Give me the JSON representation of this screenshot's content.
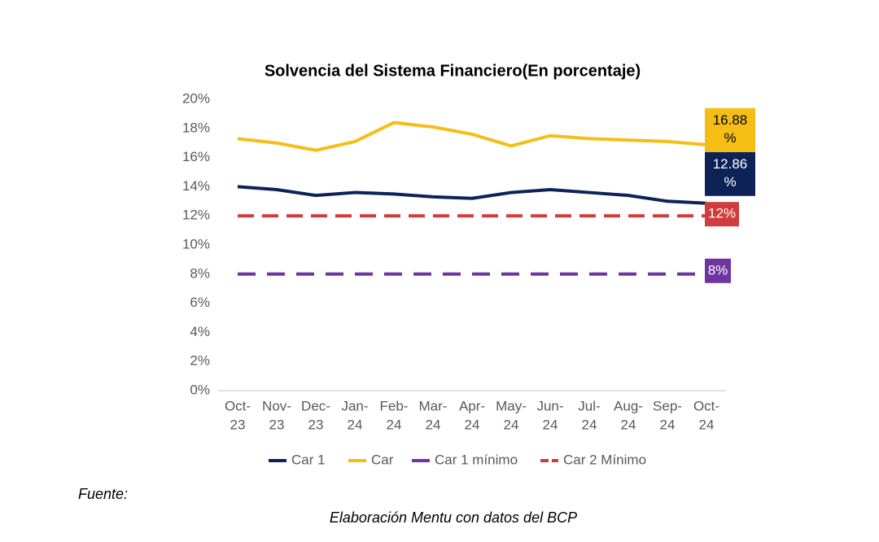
{
  "chart_data": {
    "type": "line",
    "title": "Solvencia del Sistema Financiero(En porcentaje)",
    "source_label": "Fuente:",
    "source_note": "Elaboración Mentu con datos del BCP",
    "categories": [
      "Oct-23",
      "Nov-23",
      "Dec-23",
      "Jan-24",
      "Feb-24",
      "Mar-24",
      "Apr-24",
      "May-24",
      "Jun-24",
      "Jul-24",
      "Aug-24",
      "Sep-24",
      "Oct-24"
    ],
    "series": [
      {
        "name": "Car 1",
        "color": "#0d2357",
        "dashed": false,
        "values": [
          14.0,
          13.8,
          13.4,
          13.6,
          13.5,
          13.3,
          13.2,
          13.6,
          13.8,
          13.6,
          13.4,
          13.0,
          12.86
        ],
        "value_labels": [
          null,
          null,
          null,
          null,
          null,
          null,
          null,
          null,
          null,
          null,
          null,
          null,
          "12.86 %"
        ]
      },
      {
        "name": "Car",
        "color": "#f5be16",
        "dashed": false,
        "values": [
          17.3,
          17.0,
          16.5,
          17.1,
          18.4,
          18.1,
          17.6,
          16.8,
          17.5,
          17.3,
          17.2,
          17.1,
          16.88
        ],
        "value_labels": [
          null,
          null,
          null,
          null,
          null,
          null,
          null,
          null,
          null,
          null,
          null,
          null,
          "16.88 %"
        ]
      },
      {
        "name": "Car 1 mínimo",
        "color": "#6e35a0",
        "dashed": true,
        "values": [
          8,
          8,
          8,
          8,
          8,
          8,
          8,
          8,
          8,
          8,
          8,
          8,
          8
        ],
        "value_labels": [
          null,
          null,
          null,
          null,
          null,
          null,
          null,
          null,
          null,
          null,
          null,
          null,
          "8%"
        ]
      },
      {
        "name": "Car 2 Mínimo",
        "color": "#d13c3c",
        "dashed": true,
        "values": [
          12,
          12,
          12,
          12,
          12,
          12,
          12,
          12,
          12,
          12,
          12,
          12,
          12
        ],
        "value_labels": [
          null,
          null,
          null,
          null,
          null,
          null,
          null,
          null,
          null,
          null,
          null,
          null,
          "12%"
        ]
      }
    ],
    "ylim": [
      0,
      20
    ],
    "yticks": [
      {
        "value": 0,
        "label": "0%"
      },
      {
        "value": 2,
        "label": "2%"
      },
      {
        "value": 4,
        "label": "4%"
      },
      {
        "value": 6,
        "label": "6%"
      },
      {
        "value": 8,
        "label": "8%"
      },
      {
        "value": 10,
        "label": "10%"
      },
      {
        "value": 12,
        "label": "12%"
      },
      {
        "value": 14,
        "label": "14%"
      },
      {
        "value": 16,
        "label": "16%"
      },
      {
        "value": 18,
        "label": "18%"
      },
      {
        "value": 20,
        "label": "20%"
      }
    ],
    "grid": false,
    "legend": "bottom"
  }
}
